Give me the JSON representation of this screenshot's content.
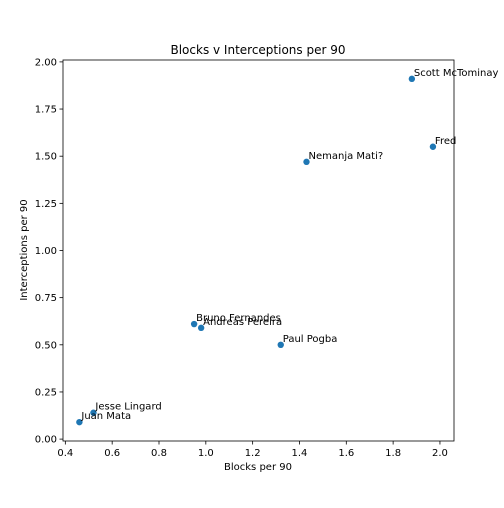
{
  "chart_data": {
    "type": "scatter",
    "title": "Blocks v Interceptions per 90",
    "xlabel": "Blocks per 90",
    "ylabel": "Interceptions per 90",
    "xlim": [
      0.39,
      2.06
    ],
    "ylim": [
      -0.01,
      2.01
    ],
    "xticks": [
      "0.4",
      "0.6",
      "0.8",
      "1.0",
      "1.2",
      "1.4",
      "1.6",
      "1.8",
      "2.0"
    ],
    "yticks": [
      "0.00",
      "0.25",
      "0.50",
      "0.75",
      "1.00",
      "1.25",
      "1.50",
      "1.75",
      "2.00"
    ],
    "grid": false,
    "marker_color": "#1f77b4",
    "points": [
      {
        "label": "Scott McTominay",
        "x": 1.88,
        "y": 1.91
      },
      {
        "label": "Fred",
        "x": 1.97,
        "y": 1.55
      },
      {
        "label": "Nemanja Mati?",
        "x": 1.43,
        "y": 1.47
      },
      {
        "label": "Bruno Fernandes",
        "x": 0.95,
        "y": 0.61
      },
      {
        "label": "Andreas Pereira",
        "x": 0.98,
        "y": 0.59
      },
      {
        "label": "Paul Pogba",
        "x": 1.32,
        "y": 0.5
      },
      {
        "label": "Jesse Lingard",
        "x": 0.52,
        "y": 0.14
      },
      {
        "label": "Juan Mata",
        "x": 0.46,
        "y": 0.09
      }
    ]
  }
}
